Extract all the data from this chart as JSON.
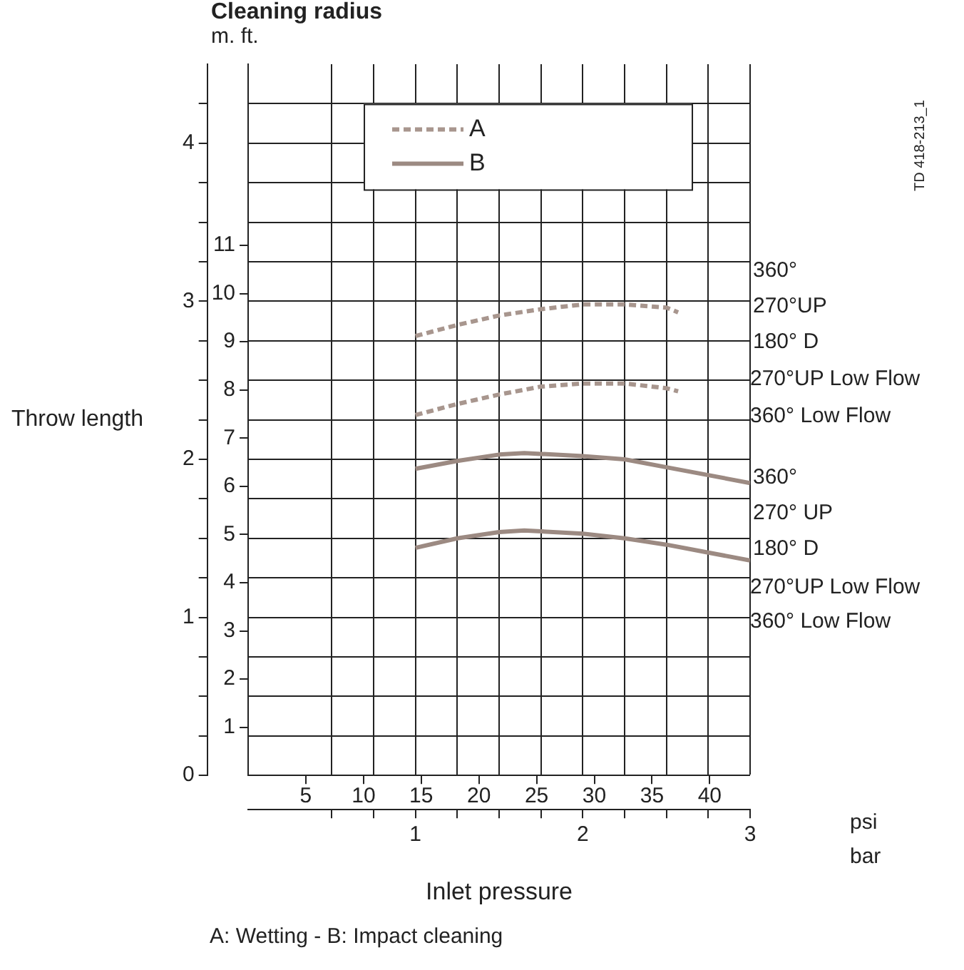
{
  "chart_data": {
    "type": "line",
    "title": "Cleaning radius",
    "ylabel": "Throw length",
    "xlabel": "Inlet pressure",
    "annotations": [
      "m. ft.",
      "psi",
      "bar",
      "A: Wetting - B: Impact cleaning",
      "TD 418-213_1",
      "360°",
      "270°UP",
      "180° D",
      "270°UP Low Flow",
      "360° Low Flow",
      "360°",
      "270° UP",
      "180° D",
      "270°UP Low Flow",
      "360° Low Flow"
    ],
    "xlim": [
      0,
      3
    ],
    "xticks": [
      {
        "value": 0.5,
        "label": null
      },
      {
        "value": 0.75,
        "label": null
      },
      1,
      {
        "value": 1.25,
        "label": null
      },
      {
        "value": 1.5,
        "label": null
      },
      {
        "value": 1.75,
        "label": null
      },
      2,
      {
        "value": 2.25,
        "label": null
      },
      {
        "value": 2.5,
        "label": null
      },
      {
        "value": 2.75,
        "label": null
      },
      3
    ],
    "x2lim": [
      0,
      43.5
    ],
    "x2ticks": [
      5,
      10,
      15,
      20,
      25,
      30,
      35,
      40
    ],
    "ylim": [
      0,
      4.5
    ],
    "yticks": [
      0,
      {
        "value": 0.25,
        "label": null
      },
      {
        "value": 0.5,
        "label": null
      },
      {
        "value": 0.75,
        "label": null
      },
      1,
      {
        "value": 1.25,
        "label": null
      },
      {
        "value": 1.5,
        "label": null
      },
      {
        "value": 1.75,
        "label": null
      },
      2,
      {
        "value": 2.25,
        "label": null
      },
      {
        "value": 2.5,
        "label": null
      },
      {
        "value": 2.75,
        "label": null
      },
      3,
      {
        "value": 3.25,
        "label": null
      },
      {
        "value": 3.5,
        "label": null
      },
      {
        "value": 3.75,
        "label": null
      },
      4,
      {
        "value": 4.25,
        "label": null
      }
    ],
    "y2lim": [
      0,
      14.76
    ],
    "y2ticks": [
      1,
      2,
      3,
      4,
      5,
      6,
      7,
      8,
      9,
      10,
      11
    ],
    "series": [
      {
        "name": "A",
        "color": "#a8968e",
        "line_style": "dashed",
        "x": [
          1,
          1.25,
          1.5,
          1.75,
          2,
          2.25,
          2.5,
          2.57
        ],
        "values": [
          2.78,
          2.85,
          2.91,
          2.95,
          2.98,
          2.98,
          2.96,
          2.93
        ]
      },
      {
        "color": "#a8968e",
        "line_style": "dashed",
        "x": [
          1,
          1.25,
          1.5,
          1.75,
          2,
          2.25,
          2.5,
          2.57
        ],
        "values": [
          2.28,
          2.35,
          2.41,
          2.46,
          2.48,
          2.48,
          2.45,
          2.43
        ]
      },
      {
        "name": "B",
        "color": "#9c8a82",
        "line_style": "solid",
        "x": [
          1,
          1.25,
          1.5,
          1.65,
          2,
          2.25,
          2.5,
          2.75,
          3
        ],
        "values": [
          1.94,
          1.99,
          2.03,
          2.04,
          2.02,
          2,
          1.95,
          1.9,
          1.85
        ]
      },
      {
        "color": "#9c8a82",
        "line_style": "solid",
        "x": [
          1,
          1.25,
          1.5,
          1.65,
          2,
          2.25,
          2.5,
          2.75,
          3
        ],
        "values": [
          1.44,
          1.5,
          1.54,
          1.55,
          1.53,
          1.5,
          1.46,
          1.41,
          1.36
        ]
      }
    ],
    "grid": true,
    "legend": "top",
    "marker": "none"
  }
}
